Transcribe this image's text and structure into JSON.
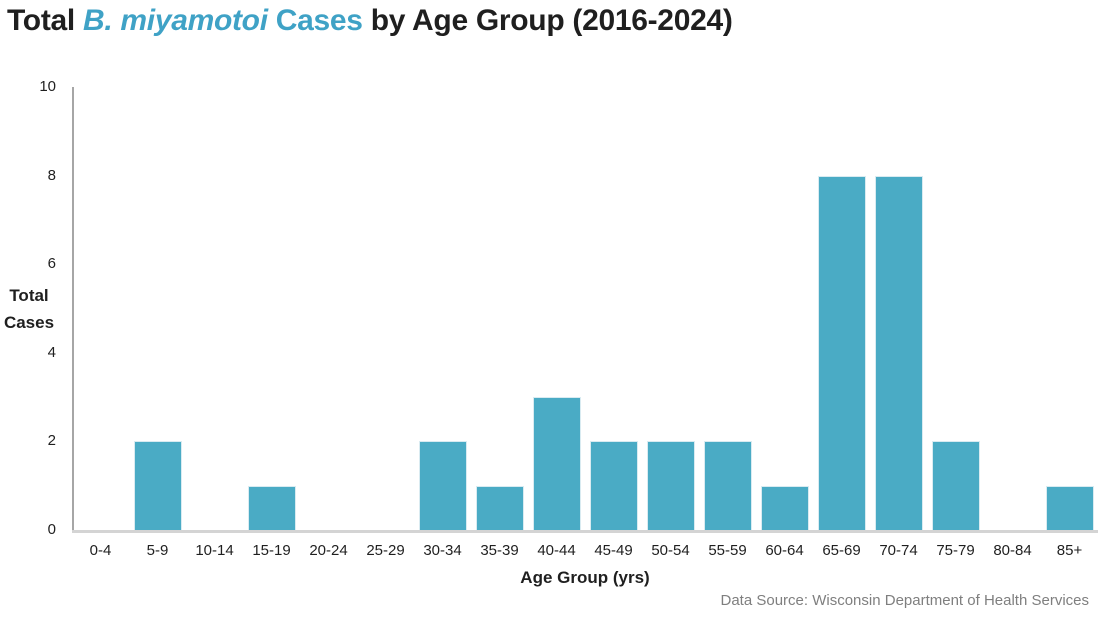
{
  "title": {
    "part1": "Total ",
    "part2": "B. miyamotoi",
    "part3": " Cases",
    "part4": " by Age Group (2016-2024)"
  },
  "colors": {
    "bar": "#4AABC5",
    "title_accent": "#3FA2C6",
    "axis_line": "#A6A6A6",
    "baseline": "#D4D4D4",
    "text": "#1F1F1F",
    "source_text": "#7F7F7F"
  },
  "chart_data": {
    "type": "bar",
    "title": "Total B. miyamotoi Cases by Age Group (2016-2024)",
    "categories": [
      "0-4",
      "5-9",
      "10-14",
      "15-19",
      "20-24",
      "25-29",
      "30-34",
      "35-39",
      "40-44",
      "45-49",
      "50-54",
      "55-59",
      "60-64",
      "65-69",
      "70-74",
      "75-79",
      "80-84",
      "85+"
    ],
    "values": [
      0,
      2,
      0,
      1,
      0,
      0,
      2,
      1,
      3,
      2,
      2,
      2,
      1,
      8,
      8,
      2,
      0,
      1
    ],
    "xlabel": "Age Group (yrs)",
    "ylabel": "Total Cases",
    "ylabel_lines": [
      "Total",
      "Cases"
    ],
    "ylim": [
      0,
      10
    ],
    "yticks": [
      0,
      2,
      4,
      6,
      8,
      10
    ],
    "grid": false,
    "legend": "none"
  },
  "footer": {
    "source": "Data Source: Wisconsin Department of Health Services"
  }
}
